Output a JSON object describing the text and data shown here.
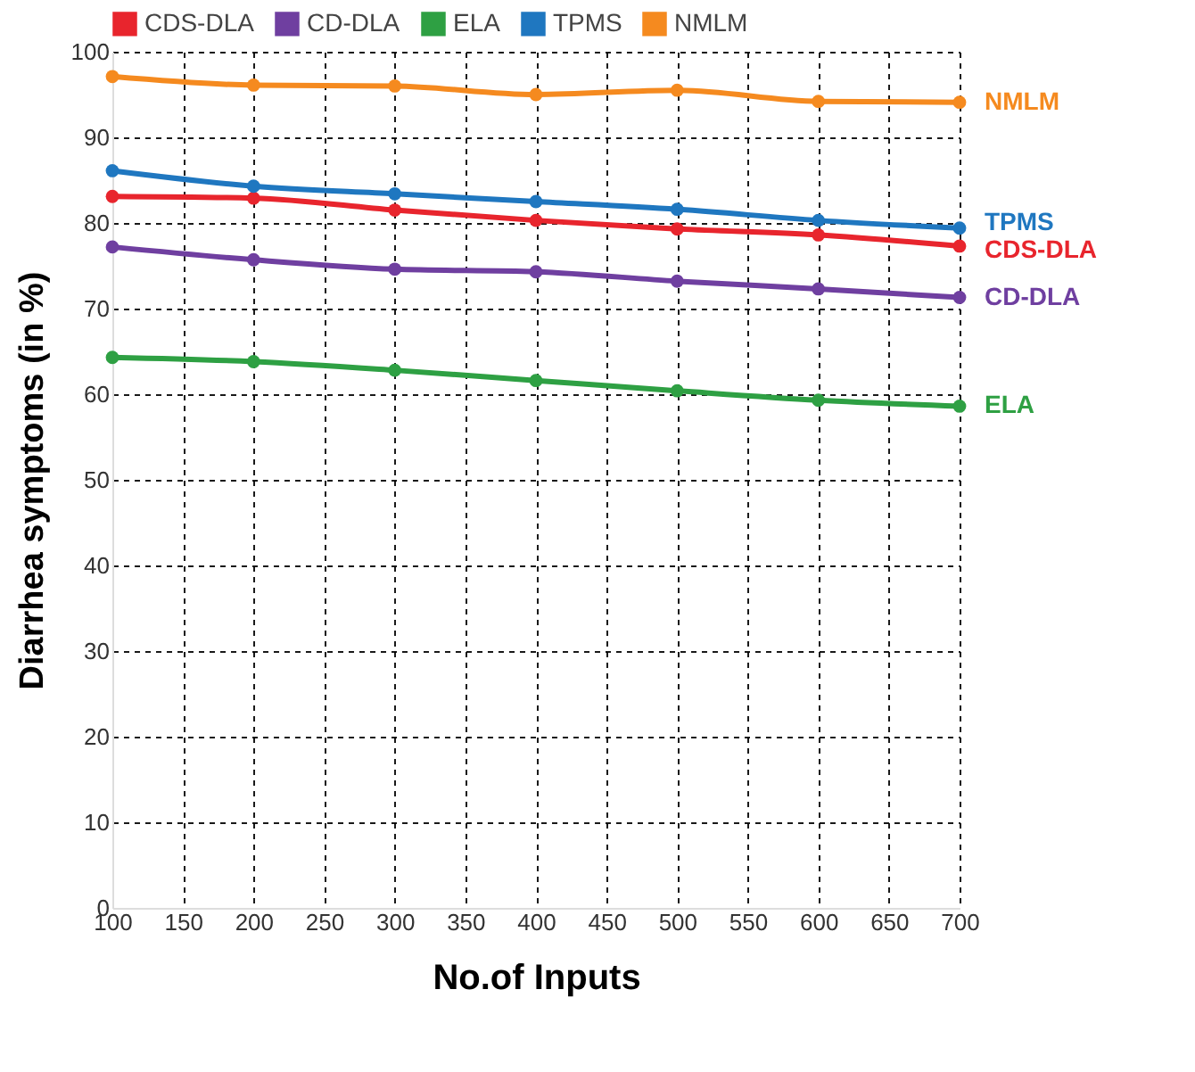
{
  "chart_data": {
    "type": "line",
    "xlabel": "No.of Inputs",
    "ylabel": "Diarrhea symptoms (in %)",
    "x": [
      100,
      200,
      300,
      400,
      500,
      600,
      700
    ],
    "series": [
      {
        "name": "CDS-DLA",
        "color": "#e8252d",
        "values": [
          83.1,
          82.9,
          81.5,
          80.3,
          79.3,
          78.6,
          77.3
        ]
      },
      {
        "name": "CD-DLA",
        "color": "#6f3fa0",
        "values": [
          77.2,
          75.7,
          74.6,
          74.3,
          73.2,
          72.3,
          71.3
        ]
      },
      {
        "name": "ELA",
        "color": "#2ea043",
        "values": [
          64.3,
          63.8,
          62.8,
          61.6,
          60.4,
          59.3,
          58.6
        ]
      },
      {
        "name": "TPMS",
        "color": "#1f77c0",
        "values": [
          86.1,
          84.3,
          83.4,
          82.5,
          81.6,
          80.3,
          79.4
        ]
      },
      {
        "name": "NMLM",
        "color": "#f58a1f",
        "values": [
          97.1,
          96.1,
          96.0,
          95.0,
          95.5,
          94.2,
          94.1
        ]
      }
    ],
    "xlim": [
      100,
      700
    ],
    "xticks": [
      100,
      150,
      200,
      250,
      300,
      350,
      400,
      450,
      500,
      550,
      600,
      650,
      700
    ],
    "ylim": [
      0,
      100
    ],
    "yticks": [
      0,
      10,
      20,
      30,
      40,
      50,
      60,
      70,
      80,
      90,
      100
    ],
    "grid": true,
    "legend": "top left",
    "marker": "circle",
    "line_style": "solid"
  }
}
